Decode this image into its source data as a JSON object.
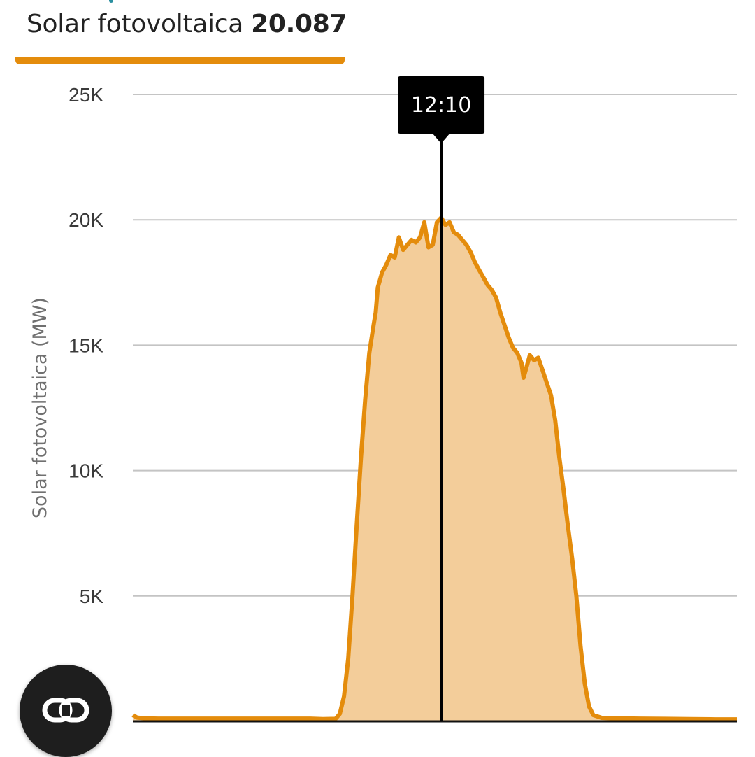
{
  "header": {
    "tab_label": "Solar fotovoltaica",
    "tab_value": "20.087"
  },
  "colors": {
    "accent": "#e48c0c",
    "fill": "#f3cd9a",
    "grid": "#c4c4c4",
    "tooltip_bg": "#000000"
  },
  "fab": {
    "icon": "link-icon"
  },
  "chart_data": {
    "type": "area",
    "title": "",
    "xlabel": "",
    "ylabel": "Solar fotovoltaica (MW)",
    "ylim": [
      0,
      25000
    ],
    "xlim": [
      "00:00",
      "23:50"
    ],
    "y_ticks": [
      {
        "value": 5000,
        "label": "5K"
      },
      {
        "value": 10000,
        "label": "10K"
      },
      {
        "value": 15000,
        "label": "15K"
      },
      {
        "value": 20000,
        "label": "20K"
      },
      {
        "value": 25000,
        "label": "25K"
      }
    ],
    "grid": true,
    "tooltip": {
      "label": "12:10",
      "x": "12:10"
    },
    "series": [
      {
        "values": [
          [
            "00:00",
            250
          ],
          [
            "00:10",
            150
          ],
          [
            "00:30",
            120
          ],
          [
            "01:00",
            110
          ],
          [
            "02:00",
            110
          ],
          [
            "03:00",
            110
          ],
          [
            "04:00",
            110
          ],
          [
            "05:00",
            110
          ],
          [
            "06:00",
            110
          ],
          [
            "07:00",
            110
          ],
          [
            "07:30",
            90
          ],
          [
            "08:00",
            100
          ],
          [
            "08:10",
            300
          ],
          [
            "08:20",
            1000
          ],
          [
            "08:30",
            2500
          ],
          [
            "08:40",
            5000
          ],
          [
            "08:50",
            7800
          ],
          [
            "09:00",
            10500
          ],
          [
            "09:10",
            12800
          ],
          [
            "09:20",
            14700
          ],
          [
            "09:30",
            15800
          ],
          [
            "09:35",
            16300
          ],
          [
            "09:40",
            17300
          ],
          [
            "09:45",
            17600
          ],
          [
            "09:50",
            17900
          ],
          [
            "10:00",
            18200
          ],
          [
            "10:10",
            18600
          ],
          [
            "10:20",
            18500
          ],
          [
            "10:30",
            19300
          ],
          [
            "10:40",
            18800
          ],
          [
            "10:50",
            19000
          ],
          [
            "11:00",
            19200
          ],
          [
            "11:10",
            19100
          ],
          [
            "11:20",
            19300
          ],
          [
            "11:30",
            19900
          ],
          [
            "11:40",
            18900
          ],
          [
            "11:50",
            19000
          ],
          [
            "12:00",
            19900
          ],
          [
            "12:10",
            20087
          ],
          [
            "12:20",
            19800
          ],
          [
            "12:30",
            19900
          ],
          [
            "12:40",
            19500
          ],
          [
            "12:50",
            19400
          ],
          [
            "13:00",
            19200
          ],
          [
            "13:10",
            19000
          ],
          [
            "13:20",
            18700
          ],
          [
            "13:30",
            18300
          ],
          [
            "13:40",
            18000
          ],
          [
            "13:50",
            17700
          ],
          [
            "14:00",
            17400
          ],
          [
            "14:10",
            17200
          ],
          [
            "14:20",
            16900
          ],
          [
            "14:30",
            16300
          ],
          [
            "14:40",
            15800
          ],
          [
            "14:50",
            15300
          ],
          [
            "15:00",
            14900
          ],
          [
            "15:10",
            14700
          ],
          [
            "15:20",
            14300
          ],
          [
            "15:25",
            13700
          ],
          [
            "15:30",
            14000
          ],
          [
            "15:40",
            14600
          ],
          [
            "15:50",
            14400
          ],
          [
            "16:00",
            14500
          ],
          [
            "16:10",
            14000
          ],
          [
            "16:20",
            13500
          ],
          [
            "16:30",
            13000
          ],
          [
            "16:40",
            12000
          ],
          [
            "16:50",
            10500
          ],
          [
            "17:00",
            9200
          ],
          [
            "17:10",
            7800
          ],
          [
            "17:20",
            6500
          ],
          [
            "17:30",
            5000
          ],
          [
            "17:40",
            3000
          ],
          [
            "17:50",
            1500
          ],
          [
            "18:00",
            600
          ],
          [
            "18:10",
            250
          ],
          [
            "18:30",
            140
          ],
          [
            "19:00",
            120
          ],
          [
            "20:00",
            110
          ],
          [
            "21:00",
            100
          ],
          [
            "22:00",
            90
          ],
          [
            "23:00",
            80
          ],
          [
            "23:50",
            80
          ]
        ]
      }
    ]
  }
}
